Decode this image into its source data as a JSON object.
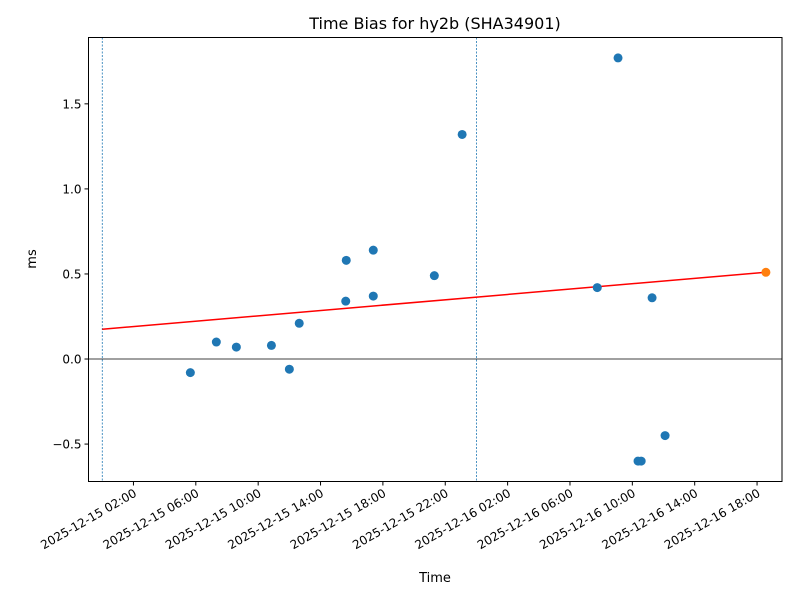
{
  "chart_data": {
    "type": "scatter",
    "title": "Time Bias for hy2b (SHA34901)",
    "xlabel": "Time",
    "ylabel": "ms",
    "xlim": [
      "2025-12-14 23:07",
      "2025-12-16 19:36"
    ],
    "ylim": [
      -0.72,
      1.89
    ],
    "x_ticks": [
      "2025-12-15 02:00",
      "2025-12-15 06:00",
      "2025-12-15 10:00",
      "2025-12-15 14:00",
      "2025-12-15 18:00",
      "2025-12-15 22:00",
      "2025-12-16 02:00",
      "2025-12-16 06:00",
      "2025-12-16 10:00",
      "2025-12-16 14:00",
      "2025-12-16 18:00"
    ],
    "y_ticks": [
      -0.5,
      0.0,
      0.5,
      1.0,
      1.5
    ],
    "y_tick_labels": [
      "−0.5",
      "0.0",
      "0.5",
      "1.0",
      "1.5"
    ],
    "grid": false,
    "colors": {
      "points": "#1f77b4",
      "prediction": "#ff7f0e",
      "fit": "#ff0000",
      "vlines": "#1f77b4",
      "zero": "#000000"
    },
    "series": [
      {
        "name": "measurements",
        "points": [
          [
            "2025-12-15 05:39",
            -0.08
          ],
          [
            "2025-12-15 07:19",
            0.1
          ],
          [
            "2025-12-15 08:36",
            0.07
          ],
          [
            "2025-12-15 10:51",
            0.08
          ],
          [
            "2025-12-15 12:00",
            -0.06
          ],
          [
            "2025-12-15 12:38",
            0.21
          ],
          [
            "2025-12-15 15:39",
            0.58
          ],
          [
            "2025-12-15 15:37",
            0.34
          ],
          [
            "2025-12-15 17:23",
            0.64
          ],
          [
            "2025-12-15 17:23",
            0.37
          ],
          [
            "2025-12-15 21:18",
            0.49
          ],
          [
            "2025-12-15 23:05",
            1.32
          ],
          [
            "2025-12-16 07:45",
            0.42
          ],
          [
            "2025-12-16 09:05",
            1.77
          ],
          [
            "2025-12-16 10:22",
            -0.6
          ],
          [
            "2025-12-16 10:34",
            -0.6
          ],
          [
            "2025-12-16 11:16",
            0.36
          ],
          [
            "2025-12-16 12:06",
            -0.45
          ]
        ]
      },
      {
        "name": "prediction",
        "points": [
          [
            "2025-12-16 18:34",
            0.51
          ]
        ]
      }
    ],
    "fit_line": [
      [
        "2025-12-15 00:00",
        0.175
      ],
      [
        "2025-12-16 18:34",
        0.51
      ]
    ],
    "vertical_lines": [
      "2025-12-15 00:00",
      "2025-12-16 00:00"
    ],
    "hline": 0.0
  }
}
